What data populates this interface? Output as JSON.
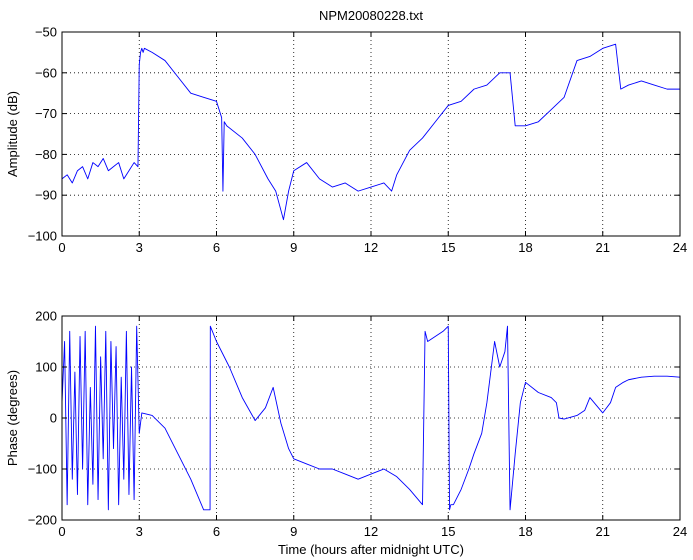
{
  "chart_data": [
    {
      "type": "line",
      "title": "NPM20080228.txt",
      "xlabel": "",
      "ylabel": "Amplitude (dB)",
      "xlim": [
        0,
        24
      ],
      "ylim": [
        -100,
        -50
      ],
      "xticks": [
        0,
        3,
        6,
        9,
        12,
        15,
        18,
        21,
        24
      ],
      "yticks": [
        -100,
        -90,
        -80,
        -70,
        -60,
        -50
      ],
      "xtick_labels": [
        "0",
        "3",
        "6",
        "9",
        "12",
        "15",
        "18",
        "21",
        "24"
      ],
      "ytick_labels": [
        "−100",
        "−90",
        "−80",
        "−70",
        "−60",
        "−50"
      ],
      "grid": true,
      "series": [
        {
          "color": "#0000ff",
          "x": [
            0,
            0.2,
            0.4,
            0.6,
            0.8,
            1.0,
            1.2,
            1.4,
            1.6,
            1.8,
            2.0,
            2.2,
            2.4,
            2.6,
            2.8,
            2.95,
            3.0,
            3.05,
            3.1,
            3.15,
            3.2,
            3.5,
            4.0,
            4.5,
            5.0,
            5.5,
            6.0,
            6.2,
            6.25,
            6.3,
            6.4,
            7.0,
            7.5,
            8.0,
            8.3,
            8.6,
            8.8,
            9.0,
            9.5,
            10.0,
            10.5,
            11.0,
            11.5,
            12.0,
            12.5,
            12.8,
            13.0,
            13.5,
            14.0,
            14.5,
            15.0,
            15.5,
            16.0,
            16.5,
            17.0,
            17.4,
            17.6,
            18.0,
            18.5,
            19.0,
            19.5,
            20.0,
            20.5,
            21.0,
            21.5,
            21.7,
            22.0,
            22.5,
            23.0,
            23.5,
            24.0
          ],
          "values": [
            -86,
            -85,
            -87,
            -84,
            -83,
            -86,
            -82,
            -83,
            -81,
            -84,
            -83,
            -82,
            -86,
            -84,
            -82,
            -83,
            -58,
            -55,
            -54,
            -55,
            -54,
            -55,
            -57,
            -61,
            -65,
            -66,
            -67,
            -71,
            -89,
            -72,
            -73,
            -76,
            -80,
            -86,
            -89,
            -96,
            -89,
            -84,
            -82,
            -86,
            -88,
            -87,
            -89,
            -88,
            -87,
            -89,
            -85,
            -79,
            -76,
            -72,
            -68,
            -67,
            -64,
            -63,
            -60,
            -60,
            -73,
            -73,
            -72,
            -69,
            -66,
            -57,
            -56,
            -54,
            -53,
            -64,
            -63,
            -62,
            -63,
            -64,
            -64
          ]
        }
      ]
    },
    {
      "type": "line",
      "title": "",
      "xlabel": "Time (hours after midnight UTC)",
      "ylabel": "Phase (degrees)",
      "xlim": [
        0,
        24
      ],
      "ylim": [
        -200,
        200
      ],
      "xticks": [
        0,
        3,
        6,
        9,
        12,
        15,
        18,
        21,
        24
      ],
      "yticks": [
        -200,
        -100,
        0,
        100,
        200
      ],
      "xtick_labels": [
        "0",
        "3",
        "6",
        "9",
        "12",
        "15",
        "18",
        "21",
        "24"
      ],
      "ytick_labels": [
        "−200",
        "−100",
        "0",
        "100",
        "200"
      ],
      "grid": true,
      "series": [
        {
          "color": "#0000ff",
          "x": [
            0,
            0.1,
            0.2,
            0.3,
            0.4,
            0.5,
            0.6,
            0.7,
            0.8,
            0.9,
            1.0,
            1.1,
            1.2,
            1.3,
            1.4,
            1.5,
            1.6,
            1.7,
            1.8,
            1.9,
            2.0,
            2.1,
            2.2,
            2.3,
            2.4,
            2.5,
            2.6,
            2.7,
            2.8,
            2.9,
            3.0,
            3.1,
            3.5,
            4.0,
            4.5,
            5.0,
            5.5,
            5.75,
            5.76,
            6.0,
            6.5,
            7.0,
            7.5,
            7.9,
            8.2,
            8.5,
            8.8,
            9.0,
            9.5,
            10.0,
            10.5,
            11.0,
            11.5,
            12.0,
            12.5,
            13.0,
            13.5,
            14.0,
            14.1,
            14.2,
            14.5,
            14.8,
            15.0,
            15.05,
            15.1,
            15.2,
            15.5,
            15.8,
            16.0,
            16.3,
            16.5,
            16.8,
            17.0,
            17.2,
            17.3,
            17.4,
            17.6,
            17.8,
            18.0,
            18.5,
            19.0,
            19.2,
            19.3,
            19.5,
            20.0,
            20.3,
            20.5,
            21.0,
            21.3,
            21.5,
            21.8,
            22.0,
            22.5,
            23.0,
            23.5,
            24.0
          ],
          "values": [
            30,
            150,
            -170,
            170,
            -120,
            90,
            -150,
            160,
            -100,
            170,
            -170,
            60,
            -130,
            180,
            -160,
            120,
            -80,
            170,
            -180,
            150,
            -60,
            140,
            -170,
            80,
            -120,
            170,
            -150,
            100,
            -160,
            180,
            -30,
            10,
            5,
            -20,
            -70,
            -120,
            -180,
            -180,
            180,
            150,
            100,
            40,
            -5,
            20,
            60,
            -10,
            -60,
            -80,
            -90,
            -100,
            -100,
            -110,
            -120,
            -110,
            -100,
            -115,
            -140,
            -170,
            170,
            150,
            160,
            170,
            180,
            -180,
            -170,
            -170,
            -140,
            -100,
            -70,
            -30,
            30,
            150,
            100,
            130,
            180,
            -180,
            -70,
            30,
            70,
            50,
            40,
            30,
            0,
            -2,
            5,
            15,
            40,
            10,
            30,
            60,
            70,
            75,
            80,
            82,
            82,
            80
          ]
        }
      ]
    }
  ]
}
